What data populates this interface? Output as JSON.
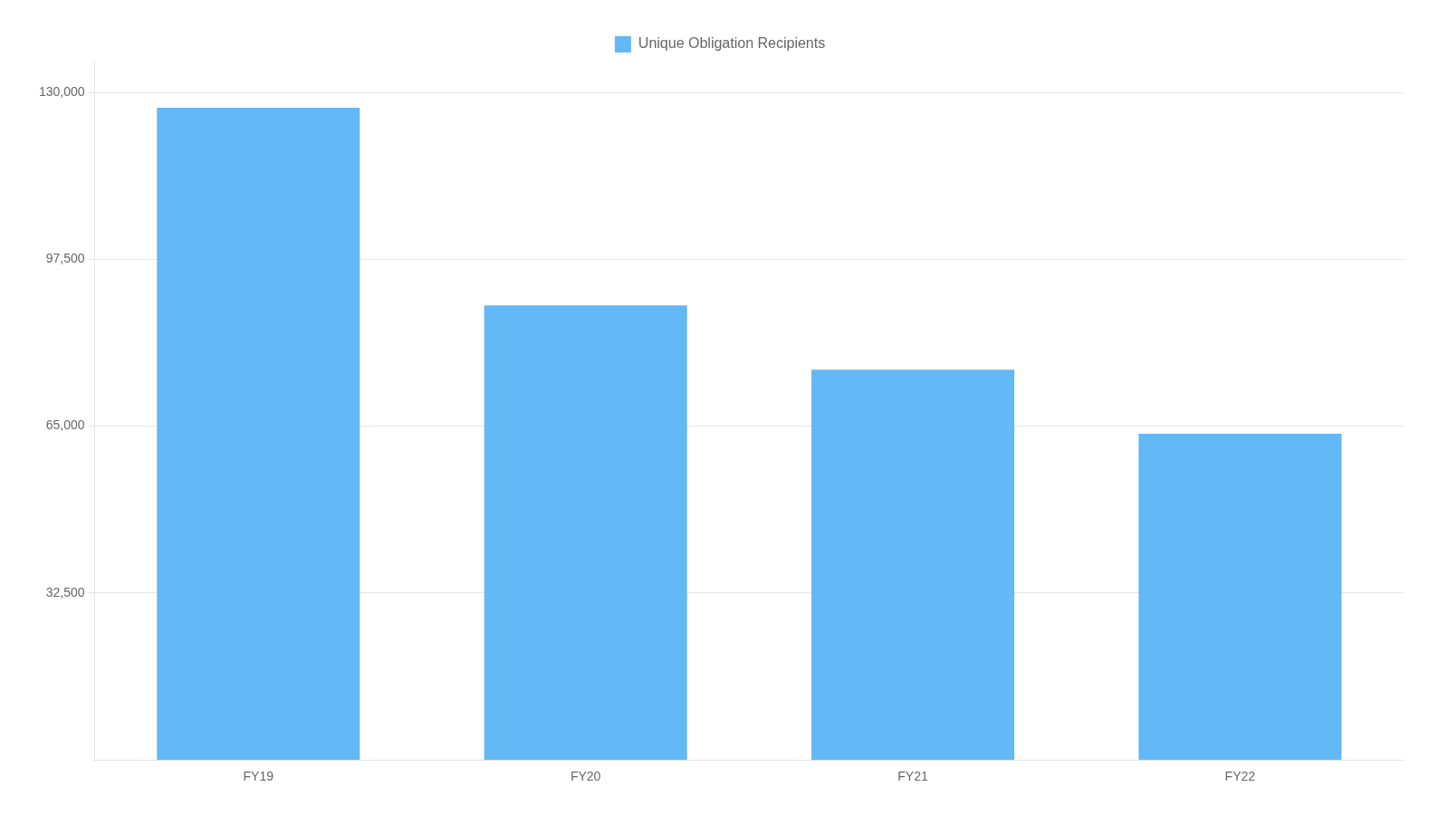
{
  "chart_data": {
    "type": "bar",
    "categories": [
      "FY19",
      "FY20",
      "FY21",
      "FY22"
    ],
    "series": [
      {
        "name": "Unique Obligation Recipients",
        "color": "#63B8F6",
        "values": [
          127000,
          88500,
          76000,
          63500
        ]
      }
    ],
    "ylim": [
      0,
      136000
    ],
    "yticks": [
      {
        "value": 32500,
        "label": "32,500"
      },
      {
        "value": 65000,
        "label": "65,000"
      },
      {
        "value": 97500,
        "label": "97,500"
      },
      {
        "value": 130000,
        "label": "130,000"
      }
    ],
    "grid": true,
    "legend": "top"
  }
}
